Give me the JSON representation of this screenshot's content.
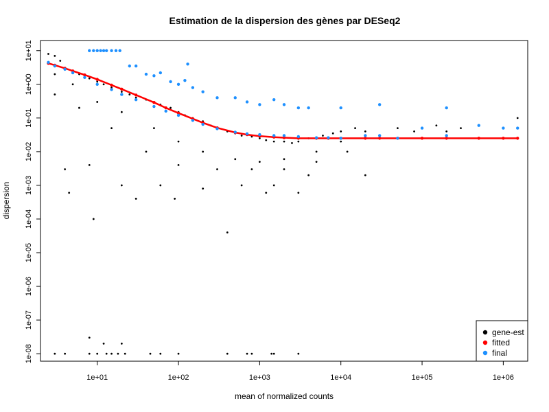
{
  "chart_data": {
    "type": "scatter",
    "title": "Estimation de la dispersion des gènes par DESeq2",
    "xlabel": "mean of normalized counts",
    "ylabel": "dispersion",
    "x_scale": "log10",
    "y_scale": "log10",
    "xlim": [
      2,
      2000000
    ],
    "ylim": [
      6e-09,
      20
    ],
    "x_ticks": [
      10,
      100,
      1000,
      10000,
      100000,
      1000000
    ],
    "x_tick_labels": [
      "1e+01",
      "1e+02",
      "1e+03",
      "1e+04",
      "1e+05",
      "1e+06"
    ],
    "y_ticks": [
      1e-08,
      1e-07,
      1e-06,
      1e-05,
      0.0001,
      0.001,
      0.01,
      0.1,
      1,
      10
    ],
    "y_tick_labels": [
      "1e-08",
      "1e-07",
      "1e-06",
      "1e-05",
      "1e-04",
      "1e-03",
      "1e-02",
      "1e-01",
      "1e+00",
      "1e+01"
    ],
    "grid": false,
    "legend_position": "bottom-right",
    "series": [
      {
        "name": "gene-est",
        "color": "#000000",
        "x": [
          2.5,
          3,
          3.5,
          4,
          5,
          6,
          8,
          10,
          12,
          15,
          20,
          25,
          30,
          40,
          50,
          60,
          80,
          100,
          120,
          150,
          200,
          250,
          300,
          400,
          500,
          600,
          800,
          1000,
          1200,
          1500,
          2000,
          2500,
          3000,
          4000,
          5000,
          6000,
          8000,
          10000,
          15000,
          20000,
          30000,
          50000,
          80000,
          100000,
          150000,
          200000,
          300000,
          500000,
          1000000,
          1500000,
          3,
          5,
          10,
          20,
          50,
          100,
          200,
          500,
          1000,
          2000,
          5000,
          10000,
          3,
          6,
          15,
          40,
          100,
          300,
          800,
          2000,
          5000,
          4,
          8,
          20,
          60,
          200,
          600,
          1500,
          4000,
          12000,
          4.5,
          9,
          30,
          90,
          400,
          1200,
          3000,
          20000,
          3,
          4,
          8,
          10,
          13,
          15,
          18,
          22,
          45,
          60,
          100,
          400,
          800,
          1500,
          3000,
          8,
          12,
          20,
          700,
          1400
        ],
        "y": [
          8,
          7,
          5,
          3,
          2.5,
          2,
          1.5,
          1.2,
          1,
          0.8,
          0.6,
          0.5,
          0.4,
          0.35,
          0.3,
          0.25,
          0.2,
          0.15,
          0.12,
          0.1,
          0.08,
          0.06,
          0.05,
          0.04,
          0.035,
          0.03,
          0.028,
          0.025,
          0.022,
          0.02,
          0.02,
          0.018,
          0.02,
          0.025,
          0.025,
          0.03,
          0.035,
          0.04,
          0.05,
          0.04,
          0.03,
          0.05,
          0.04,
          0.05,
          0.06,
          0.04,
          0.05,
          0.06,
          0.05,
          0.1,
          2,
          1,
          0.3,
          0.15,
          0.05,
          0.02,
          0.01,
          0.006,
          0.005,
          0.006,
          0.01,
          0.02,
          0.5,
          0.2,
          0.05,
          0.01,
          0.004,
          0.003,
          0.003,
          0.003,
          0.005,
          0.003,
          0.004,
          0.001,
          0.001,
          0.0008,
          0.001,
          0.001,
          0.002,
          0.01,
          0.0006,
          0.0001,
          0.0004,
          0.0004,
          4e-05,
          0.0006,
          0.0006,
          0.002,
          1e-08,
          1e-08,
          1e-08,
          1e-08,
          1e-08,
          1e-08,
          1e-08,
          1e-08,
          1e-08,
          1e-08,
          1e-08,
          1e-08,
          1e-08,
          1e-08,
          1e-08,
          3e-08,
          2e-08,
          2e-08,
          1e-08,
          1e-08
        ]
      },
      {
        "name": "fitted",
        "color": "#ff0000",
        "x": [
          2.5,
          3,
          4,
          5,
          7,
          10,
          15,
          20,
          30,
          50,
          70,
          100,
          150,
          200,
          300,
          500,
          700,
          1000,
          1500,
          2000,
          3000,
          5000,
          7000,
          10000,
          20000,
          30000,
          50000,
          100000,
          200000,
          500000,
          1000000,
          1500000
        ],
        "y": [
          4.2,
          3.7,
          3.0,
          2.5,
          1.9,
          1.4,
          0.95,
          0.72,
          0.48,
          0.29,
          0.2,
          0.14,
          0.095,
          0.072,
          0.051,
          0.037,
          0.032,
          0.029,
          0.027,
          0.026,
          0.025,
          0.025,
          0.025,
          0.025,
          0.025,
          0.025,
          0.025,
          0.025,
          0.025,
          0.025,
          0.025,
          0.025
        ]
      },
      {
        "name": "final",
        "color": "#1e90ff",
        "x": [
          2.5,
          3,
          4,
          5,
          7,
          10,
          15,
          20,
          30,
          50,
          70,
          100,
          150,
          200,
          300,
          500,
          700,
          1000,
          1500,
          2000,
          3000,
          5000,
          7000,
          10000,
          20000,
          30000,
          50000,
          100000,
          200000,
          500000,
          1000000,
          1500000,
          8,
          9,
          10,
          11,
          12,
          13,
          15,
          17,
          19,
          25,
          30,
          40,
          50,
          60,
          80,
          100,
          120,
          130,
          150,
          200,
          300,
          500,
          700,
          1000,
          1500,
          2000,
          3000,
          4000,
          10000,
          30000,
          200000
        ],
        "y": [
          4.5,
          3.5,
          2.8,
          2.2,
          1.6,
          1.0,
          0.7,
          0.5,
          0.35,
          0.22,
          0.16,
          0.12,
          0.085,
          0.065,
          0.048,
          0.038,
          0.034,
          0.032,
          0.03,
          0.03,
          0.028,
          0.026,
          0.026,
          0.025,
          0.03,
          0.03,
          0.025,
          0.05,
          0.03,
          0.06,
          0.05,
          0.05,
          10,
          10,
          10,
          10,
          10,
          10,
          10,
          10,
          10,
          3.5,
          3.5,
          2,
          1.8,
          2.2,
          1.2,
          1,
          1.3,
          4,
          0.8,
          0.6,
          0.4,
          0.4,
          0.3,
          0.25,
          0.35,
          0.25,
          0.2,
          0.2,
          0.2,
          0.25,
          0.2
        ]
      }
    ],
    "legend": [
      {
        "label": "gene-est",
        "color": "#000000"
      },
      {
        "label": "fitted",
        "color": "#ff0000"
      },
      {
        "label": "final",
        "color": "#1e90ff"
      }
    ]
  }
}
